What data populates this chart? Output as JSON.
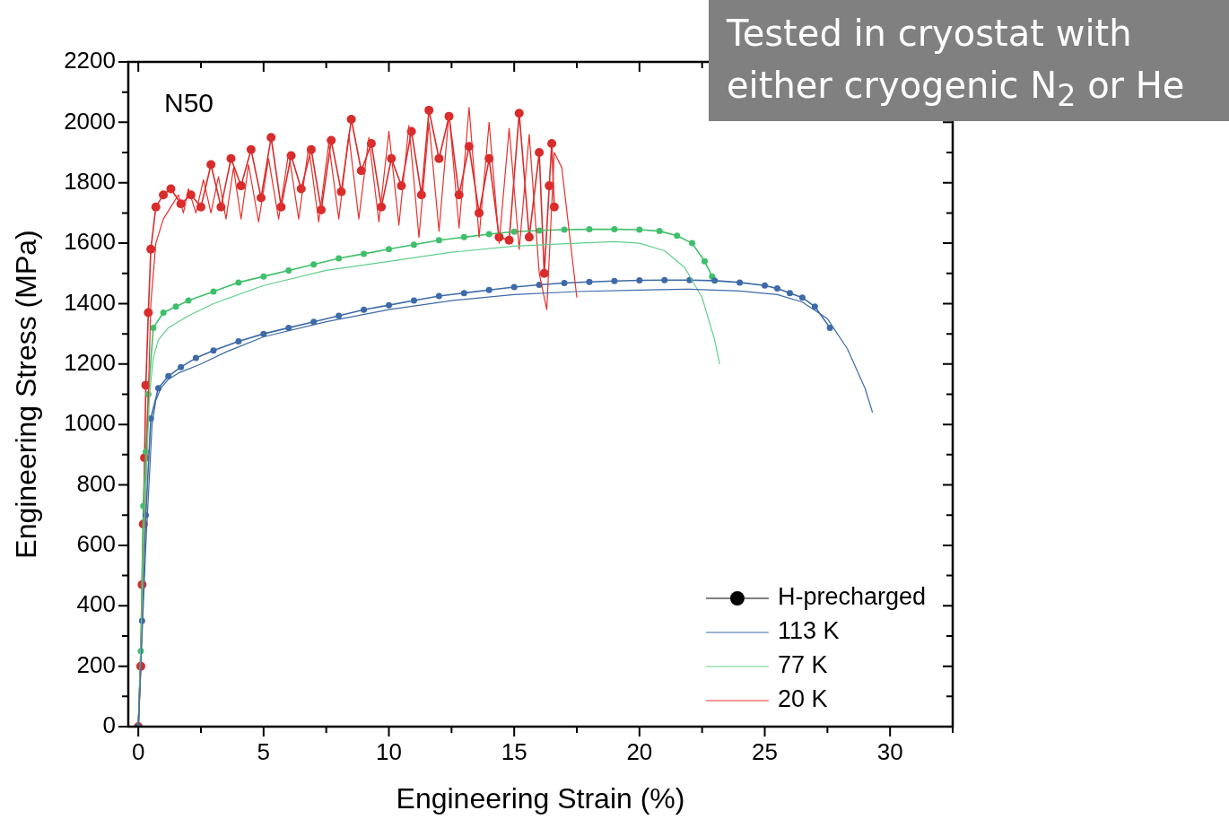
{
  "chart_data": {
    "type": "line",
    "xlabel": "Engineering Strain (%)",
    "ylabel": "Engineering Stress (MPa)",
    "xlim": [
      -0.4,
      32.5
    ],
    "ylim": [
      0,
      2200
    ],
    "xticks": [
      0,
      {
        "value": 2.5,
        "label": null
      },
      5,
      {
        "value": 7.5,
        "label": null
      },
      10,
      {
        "value": 12.5,
        "label": null
      },
      15,
      {
        "value": 17.5,
        "label": null
      },
      20,
      {
        "value": 22.5,
        "label": null
      },
      25,
      {
        "value": 27.5,
        "label": null
      },
      30,
      {
        "value": 32.5,
        "label": null
      }
    ],
    "yticks": [
      0,
      {
        "value": 100,
        "label": null
      },
      200,
      {
        "value": 300,
        "label": null
      },
      400,
      {
        "value": 500,
        "label": null
      },
      600,
      {
        "value": 700,
        "label": null
      },
      800,
      {
        "value": 900,
        "label": null
      },
      1000,
      {
        "value": 1100,
        "label": null
      },
      1200,
      {
        "value": 1300,
        "label": null
      },
      1400,
      {
        "value": 1500,
        "label": null
      },
      1600,
      {
        "value": 1700,
        "label": null
      },
      1800,
      {
        "value": 1900,
        "label": null
      },
      2000,
      {
        "value": 2100,
        "label": null
      },
      2200
    ],
    "grid": false,
    "legend": "bottom right",
    "line_style": "solid",
    "annotations": [
      "N50",
      "Tested in cryostat with either cryogenic N$_{2}$ or He"
    ],
    "series": [
      {
        "name": "H-precharged",
        "color": "#000000",
        "marker": "circle"
      },
      {
        "name": "113 K",
        "color": "#3d6aa8",
        "marker": "none",
        "x": [
          0,
          0.3,
          0.55,
          0.7,
          0.9,
          1.2,
          1.6,
          2.5,
          3.5,
          5,
          7.5,
          10,
          12.5,
          15,
          17.5,
          20,
          22,
          24,
          25.5,
          26.5,
          27.5,
          28.3,
          29,
          29.3
        ],
        "values": [
          0,
          600,
          1000,
          1080,
          1120,
          1150,
          1170,
          1200,
          1240,
          1290,
          1340,
          1380,
          1410,
          1430,
          1440,
          1445,
          1448,
          1442,
          1430,
          1405,
          1350,
          1250,
          1120,
          1040
        ]
      },
      {
        "name": "77 K",
        "color": "#5fcf8c",
        "marker": "none",
        "x": [
          0,
          0.25,
          0.45,
          0.6,
          0.8,
          1.2,
          2,
          3,
          5,
          7.5,
          10,
          12.5,
          15,
          17.5,
          19,
          20,
          21,
          21.8,
          22.5,
          23,
          23.2
        ],
        "values": [
          0,
          700,
          1100,
          1220,
          1280,
          1320,
          1360,
          1400,
          1460,
          1510,
          1540,
          1570,
          1590,
          1600,
          1605,
          1600,
          1575,
          1520,
          1420,
          1280,
          1200
        ]
      },
      {
        "name": "20 K",
        "color": "#e8322e",
        "marker": "none",
        "x": [
          0,
          0.3,
          0.5,
          0.7,
          1.0,
          1.3,
          1.6,
          1.8,
          2.0,
          2.3,
          2.6,
          2.9,
          3.2,
          3.5,
          3.8,
          4.1,
          4.4,
          4.8,
          5.2,
          5.6,
          6.0,
          6.4,
          6.8,
          7.2,
          7.6,
          8.0,
          8.4,
          8.8,
          9.2,
          9.6,
          10.0,
          10.4,
          10.8,
          11.2,
          11.6,
          12.0,
          12.4,
          12.8,
          13.2,
          13.6,
          14.0,
          14.4,
          14.8,
          15.2,
          15.6,
          16.0,
          16.3,
          16.6,
          16.9,
          17.5
        ],
        "values": [
          0,
          800,
          1400,
          1600,
          1680,
          1720,
          1760,
          1700,
          1780,
          1700,
          1810,
          1700,
          1820,
          1680,
          1850,
          1680,
          1860,
          1670,
          1880,
          1680,
          1900,
          1680,
          1920,
          1670,
          1930,
          1680,
          1960,
          1680,
          1950,
          1670,
          1970,
          1660,
          1990,
          1620,
          2000,
          1640,
          2030,
          1650,
          2050,
          1620,
          2000,
          1600,
          1980,
          1580,
          1960,
          1500,
          1380,
          1900,
          1850,
          1420
        ]
      },
      {
        "color": "#3d6aa8",
        "marker": "circle",
        "x": [
          0,
          0.15,
          0.3,
          0.5,
          0.8,
          1.2,
          1.7,
          2.3,
          3,
          4,
          5,
          6,
          7,
          8,
          9,
          10,
          11,
          12,
          13,
          14,
          15,
          16,
          17,
          18,
          19,
          20,
          21,
          22,
          23,
          24,
          25,
          25.5,
          26,
          26.5,
          27,
          27.6
        ],
        "values": [
          0,
          350,
          700,
          1020,
          1120,
          1160,
          1190,
          1220,
          1245,
          1275,
          1300,
          1320,
          1340,
          1360,
          1380,
          1395,
          1410,
          1425,
          1435,
          1445,
          1455,
          1462,
          1468,
          1472,
          1475,
          1477,
          1478,
          1478,
          1476,
          1470,
          1460,
          1450,
          1435,
          1420,
          1390,
          1320
        ]
      },
      {
        "color": "#3fbf6a",
        "marker": "circle",
        "x": [
          0,
          0.1,
          0.2,
          0.3,
          0.4,
          0.6,
          1,
          1.5,
          2,
          3,
          4,
          5,
          6,
          7,
          8,
          9,
          10,
          11,
          12,
          13,
          14,
          15,
          16,
          17,
          18,
          19,
          20,
          20.8,
          21.5,
          22.1,
          22.6,
          22.9
        ],
        "values": [
          0,
          250,
          730,
          910,
          1100,
          1320,
          1370,
          1390,
          1410,
          1440,
          1470,
          1490,
          1510,
          1530,
          1550,
          1565,
          1580,
          1595,
          1610,
          1620,
          1630,
          1638,
          1642,
          1645,
          1646,
          1646,
          1645,
          1640,
          1625,
          1600,
          1540,
          1490
        ]
      },
      {
        "color": "#d82c2c",
        "marker": "circle",
        "x": [
          0,
          0.1,
          0.15,
          0.2,
          0.25,
          0.3,
          0.4,
          0.5,
          0.7,
          1.0,
          1.3,
          1.7,
          2.1,
          2.5,
          2.9,
          3.3,
          3.7,
          4.1,
          4.5,
          4.9,
          5.3,
          5.7,
          6.1,
          6.5,
          6.9,
          7.3,
          7.7,
          8.1,
          8.5,
          8.9,
          9.3,
          9.7,
          10.1,
          10.5,
          10.9,
          11.3,
          11.6,
          12.0,
          12.4,
          12.8,
          13.2,
          13.6,
          14.0,
          14.4,
          14.8,
          15.2,
          15.6,
          16.0,
          16.2,
          16.4,
          16.5,
          16.6
        ],
        "values": [
          0,
          200,
          470,
          670,
          890,
          1130,
          1370,
          1580,
          1720,
          1760,
          1780,
          1730,
          1760,
          1720,
          1860,
          1720,
          1880,
          1790,
          1910,
          1750,
          1950,
          1720,
          1890,
          1780,
          1910,
          1710,
          1940,
          1770,
          2010,
          1840,
          1930,
          1720,
          1880,
          1790,
          1970,
          1760,
          2040,
          1880,
          2020,
          1760,
          1920,
          1700,
          1880,
          1620,
          1610,
          2030,
          1620,
          1900,
          1500,
          1790,
          1930,
          1720
        ]
      }
    ]
  }
}
